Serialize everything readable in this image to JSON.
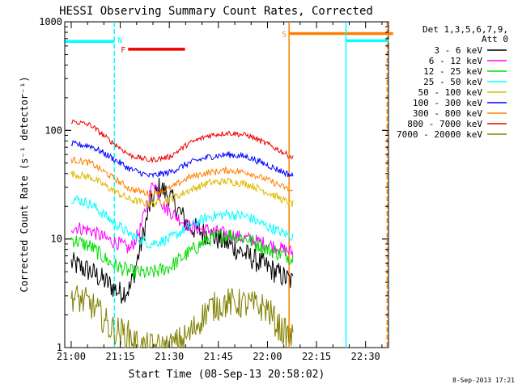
{
  "chart_data": {
    "type": "line",
    "title": "HESSI Observing Summary Count Rates, Corrected",
    "xlabel": "Start Time (08-Sep-13 20:58:02)",
    "ylabel": "Corrected Count Rate (s⁻¹ detector⁻¹)",
    "y_scale": "log",
    "ylim": [
      1,
      1000
    ],
    "xlim": [
      "20:58:02",
      "22:37:00"
    ],
    "x_ticks": [
      "21:00",
      "21:15",
      "21:30",
      "21:45",
      "22:00",
      "22:15",
      "22:30"
    ],
    "y_ticks": [
      "1",
      "10",
      "100",
      "1000"
    ],
    "timestamp": "8-Sep-2013 17:21",
    "legend_position": "top-right",
    "legend_header": [
      "Det 1,3,5,6,7,9,",
      "Att 0"
    ],
    "series": [
      {
        "name": "3 - 6 keV",
        "color": "#000000",
        "values": [
          [
            21.0,
            6.0
          ],
          [
            21.1,
            5.0
          ],
          [
            21.18,
            4.0
          ],
          [
            21.25,
            3.2
          ],
          [
            21.3,
            3.5
          ],
          [
            21.35,
            8.0
          ],
          [
            21.4,
            20
          ],
          [
            21.45,
            30
          ],
          [
            21.5,
            25
          ],
          [
            21.55,
            18
          ],
          [
            21.6,
            13
          ],
          [
            21.7,
            11
          ],
          [
            21.8,
            9
          ],
          [
            21.9,
            7
          ],
          [
            22.0,
            5.5
          ],
          [
            22.08,
            4.5
          ],
          [
            22.13,
            4.0
          ]
        ]
      },
      {
        "name": "6 - 12 keV",
        "color": "#ff00ff",
        "values": [
          [
            21.0,
            13
          ],
          [
            21.1,
            12
          ],
          [
            21.18,
            10
          ],
          [
            21.25,
            9.0
          ],
          [
            21.3,
            8.0
          ],
          [
            21.35,
            12
          ],
          [
            21.42,
            35
          ],
          [
            21.47,
            20
          ],
          [
            21.52,
            17
          ],
          [
            21.6,
            13
          ],
          [
            21.7,
            12
          ],
          [
            21.8,
            11
          ],
          [
            21.9,
            10
          ],
          [
            22.0,
            9.0
          ],
          [
            22.08,
            8.0
          ],
          [
            22.13,
            7.5
          ]
        ]
      },
      {
        "name": "12 - 25 keV",
        "color": "#00dd00",
        "values": [
          [
            21.0,
            10
          ],
          [
            21.1,
            8.5
          ],
          [
            21.2,
            6
          ],
          [
            21.3,
            5
          ],
          [
            21.4,
            4.8
          ],
          [
            21.5,
            5.5
          ],
          [
            21.6,
            7.5
          ],
          [
            21.7,
            10
          ],
          [
            21.8,
            11
          ],
          [
            21.9,
            10
          ],
          [
            22.0,
            8
          ],
          [
            22.1,
            7
          ],
          [
            22.13,
            6.5
          ]
        ]
      },
      {
        "name": "25 - 50 keV",
        "color": "#00ffff",
        "values": [
          [
            21.0,
            24
          ],
          [
            21.1,
            21
          ],
          [
            21.2,
            15
          ],
          [
            21.3,
            11
          ],
          [
            21.4,
            9
          ],
          [
            21.5,
            10
          ],
          [
            21.6,
            13
          ],
          [
            21.7,
            16
          ],
          [
            21.8,
            17
          ],
          [
            21.9,
            16
          ],
          [
            22.0,
            13
          ],
          [
            22.1,
            11
          ],
          [
            22.13,
            10.5
          ]
        ]
      },
      {
        "name": "50 - 100 keV",
        "color": "#ddbb00",
        "values": [
          [
            21.0,
            40
          ],
          [
            21.1,
            37
          ],
          [
            21.2,
            29
          ],
          [
            21.3,
            23
          ],
          [
            21.4,
            21
          ],
          [
            21.5,
            23
          ],
          [
            21.6,
            28
          ],
          [
            21.7,
            33
          ],
          [
            21.8,
            34
          ],
          [
            21.9,
            32
          ],
          [
            22.0,
            27
          ],
          [
            22.1,
            22
          ],
          [
            22.13,
            21
          ]
        ]
      },
      {
        "name": "100 - 300 keV",
        "color": "#0000ff",
        "values": [
          [
            21.0,
            75
          ],
          [
            21.1,
            72
          ],
          [
            21.2,
            57
          ],
          [
            21.3,
            44
          ],
          [
            21.4,
            38
          ],
          [
            21.5,
            41
          ],
          [
            21.6,
            50
          ],
          [
            21.7,
            57
          ],
          [
            21.8,
            60
          ],
          [
            21.9,
            57
          ],
          [
            22.0,
            48
          ],
          [
            22.1,
            40
          ],
          [
            22.13,
            38
          ]
        ]
      },
      {
        "name": "300 - 800 keV",
        "color": "#ff8000",
        "values": [
          [
            21.0,
            54
          ],
          [
            21.1,
            50
          ],
          [
            21.2,
            38
          ],
          [
            21.3,
            29
          ],
          [
            21.4,
            26
          ],
          [
            21.5,
            29
          ],
          [
            21.6,
            37
          ],
          [
            21.7,
            41
          ],
          [
            21.8,
            43
          ],
          [
            21.9,
            41
          ],
          [
            22.0,
            35
          ],
          [
            22.1,
            29
          ],
          [
            22.13,
            27
          ]
        ]
      },
      {
        "name": "800 - 7000 keV",
        "color": "#ee0000",
        "values": [
          [
            21.0,
            122
          ],
          [
            21.1,
            112
          ],
          [
            21.2,
            80
          ],
          [
            21.3,
            59
          ],
          [
            21.4,
            53
          ],
          [
            21.5,
            57
          ],
          [
            21.6,
            76
          ],
          [
            21.7,
            90
          ],
          [
            21.8,
            95
          ],
          [
            21.9,
            90
          ],
          [
            22.0,
            75
          ],
          [
            22.1,
            60
          ],
          [
            22.13,
            56
          ]
        ]
      },
      {
        "name": "7000 - 20000 keV",
        "color": "#808000",
        "values": [
          [
            21.0,
            3.0
          ],
          [
            21.1,
            2.5
          ],
          [
            21.15,
            2.0
          ],
          [
            21.2,
            1.5
          ],
          [
            21.3,
            1.3
          ],
          [
            21.35,
            1.0
          ],
          [
            21.5,
            1.0
          ],
          [
            21.6,
            1.3
          ],
          [
            21.7,
            2.3
          ],
          [
            21.8,
            2.6
          ],
          [
            21.9,
            2.5
          ],
          [
            22.0,
            2.3
          ],
          [
            22.05,
            1.6
          ],
          [
            22.1,
            1.3
          ],
          [
            22.13,
            1.2
          ]
        ]
      }
    ],
    "state_flags": [
      {
        "label": "F",
        "color": "#ee0000",
        "start": 21.29,
        "end": 21.58,
        "level": 560
      },
      {
        "label": "N",
        "color": "#00ffff",
        "start": 20.97,
        "end": 21.22,
        "level": 660
      },
      {
        "label": "S",
        "color": "#ff8000",
        "start": 22.11,
        "end": 22.64,
        "level": 780
      },
      {
        "label": "",
        "color": "#00ffff",
        "start": 22.4,
        "end": 22.62,
        "level": 670
      }
    ],
    "vertical_markers": [
      {
        "x": 21.22,
        "color": "#00ffff",
        "style": "dashed"
      },
      {
        "x": 22.11,
        "color": "#ff8000",
        "style": "solid"
      },
      {
        "x": 22.4,
        "color": "#00ffff",
        "style": "solid"
      },
      {
        "x": 22.61,
        "color": "#ff8000",
        "style": "dashed"
      }
    ]
  }
}
